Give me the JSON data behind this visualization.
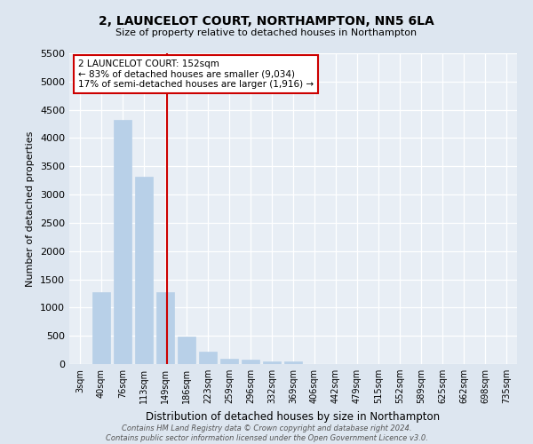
{
  "title": "2, LAUNCELOT COURT, NORTHAMPTON, NN5 6LA",
  "subtitle": "Size of property relative to detached houses in Northampton",
  "xlabel": "Distribution of detached houses by size in Northampton",
  "ylabel": "Number of detached properties",
  "bar_labels": [
    "3sqm",
    "40sqm",
    "76sqm",
    "113sqm",
    "149sqm",
    "186sqm",
    "223sqm",
    "259sqm",
    "296sqm",
    "332sqm",
    "369sqm",
    "406sqm",
    "442sqm",
    "479sqm",
    "515sqm",
    "552sqm",
    "589sqm",
    "625sqm",
    "662sqm",
    "698sqm",
    "735sqm"
  ],
  "bar_values": [
    0,
    1270,
    4320,
    3310,
    1280,
    490,
    220,
    90,
    75,
    55,
    50,
    0,
    0,
    0,
    0,
    0,
    0,
    0,
    0,
    0,
    0
  ],
  "bar_color": "#b8d0e8",
  "bar_edge_color": "#b8d0e8",
  "vline_x": 4.1,
  "vline_color": "#cc0000",
  "ylim": [
    0,
    5500
  ],
  "yticks": [
    0,
    500,
    1000,
    1500,
    2000,
    2500,
    3000,
    3500,
    4000,
    4500,
    5000,
    5500
  ],
  "annotation_text": "2 LAUNCELOT COURT: 152sqm\n← 83% of detached houses are smaller (9,034)\n17% of semi-detached houses are larger (1,916) →",
  "annotation_box_color": "#ffffff",
  "annotation_box_edge": "#cc0000",
  "footer": "Contains HM Land Registry data © Crown copyright and database right 2024.\nContains public sector information licensed under the Open Government Licence v3.0.",
  "bg_color": "#dde6f0",
  "plot_bg_color": "#e8eef5"
}
